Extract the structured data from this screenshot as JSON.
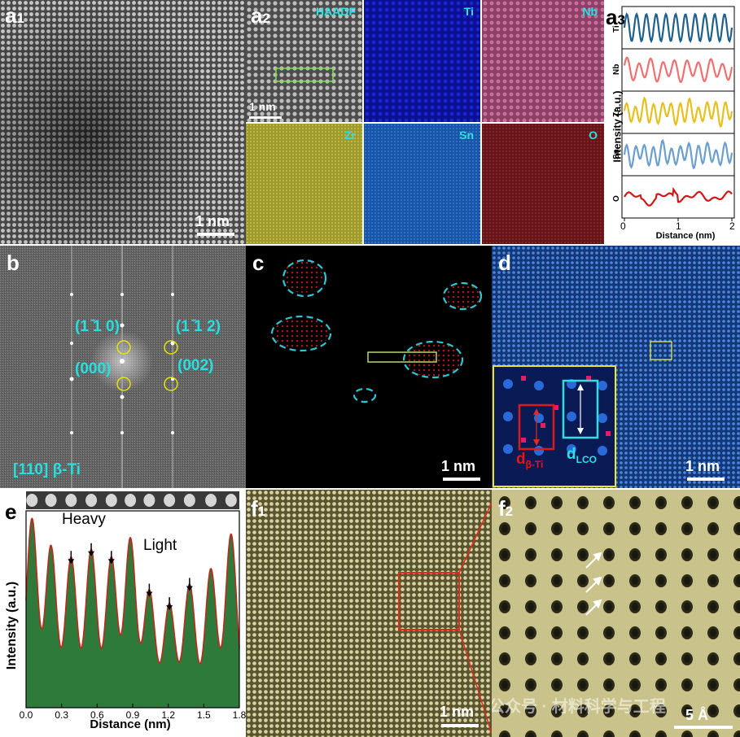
{
  "panels": {
    "a1": {
      "letter": "a",
      "sub": "1",
      "scale": "1 nm"
    },
    "a2": {
      "letter": "a",
      "sub": "2",
      "scale": "1 nm",
      "maps": [
        {
          "label": "HAADF",
          "color": "#6a6a6a"
        },
        {
          "label": "Ti",
          "color": "#0a12a8"
        },
        {
          "label": "Nb",
          "color": "#b0557e"
        },
        {
          "label": "Zr",
          "color": "#a8a332"
        },
        {
          "label": "Sn",
          "color": "#1b5fb8"
        },
        {
          "label": "O",
          "color": "#7a1a1e"
        }
      ]
    },
    "a3": {
      "letter": "a",
      "sub": "3",
      "ylabel": "Intensity (a.u.)",
      "xlabel": "Distance (nm)",
      "xticks": [
        "0",
        "1",
        "2"
      ]
    },
    "b": {
      "letter": "b",
      "spot_1m10": "(1 ̄1 0)",
      "spot_1m12": "(1 ̄1 2)",
      "spot_000": "(000)",
      "spot_002": "(002)",
      "zone": "[110] β-Ti"
    },
    "c": {
      "letter": "c",
      "scale": "1 nm"
    },
    "d": {
      "letter": "d",
      "scale": "1 nm",
      "d_beta": "d",
      "d_beta_sub": "β-Ti",
      "d_lco": "d",
      "d_lco_sub": "LCO"
    },
    "e": {
      "letter": "e",
      "ylabel": "Intensity (a.u.)",
      "xlabel": "Distance (nm)",
      "heavy": "Heavy",
      "light": "Light",
      "xticks": [
        "0.0",
        "0.3",
        "0.6",
        "0.9",
        "1.2",
        "1.5",
        "1.8"
      ]
    },
    "f1": {
      "letter": "f",
      "sub": "1",
      "scale": "1 nm"
    },
    "f2": {
      "letter": "f",
      "sub": "2",
      "scale": "5 Å"
    },
    "watermark": "公众号 · 材料科学与工程"
  },
  "chart_data": [
    {
      "type": "line",
      "title": "",
      "xlabel": "Distance (nm)",
      "ylabel": "Intensity (a.u.)",
      "xlim": [
        0,
        2
      ],
      "series": [
        {
          "name": "Ti",
          "color": "#1f5f8b"
        },
        {
          "name": "Nb",
          "color": "#f07070"
        },
        {
          "name": "Zr",
          "color": "#e6c020"
        },
        {
          "name": "Sn",
          "color": "#6a9fd0"
        },
        {
          "name": "O",
          "color": "#d01818"
        }
      ]
    },
    {
      "type": "area",
      "title": "",
      "xlabel": "Distance (nm)",
      "ylabel": "Intensity (a.u.)",
      "xlim": [
        0,
        1.8
      ],
      "x": [
        0.05,
        0.21,
        0.38,
        0.55,
        0.72,
        0.88,
        1.04,
        1.21,
        1.38,
        1.56,
        1.73
      ],
      "series": [
        {
          "name": "",
          "values": [
            0.92,
            0.78,
            0.72,
            0.76,
            0.72,
            0.82,
            0.55,
            0.48,
            0.58,
            0.66,
            0.84
          ]
        }
      ]
    }
  ]
}
